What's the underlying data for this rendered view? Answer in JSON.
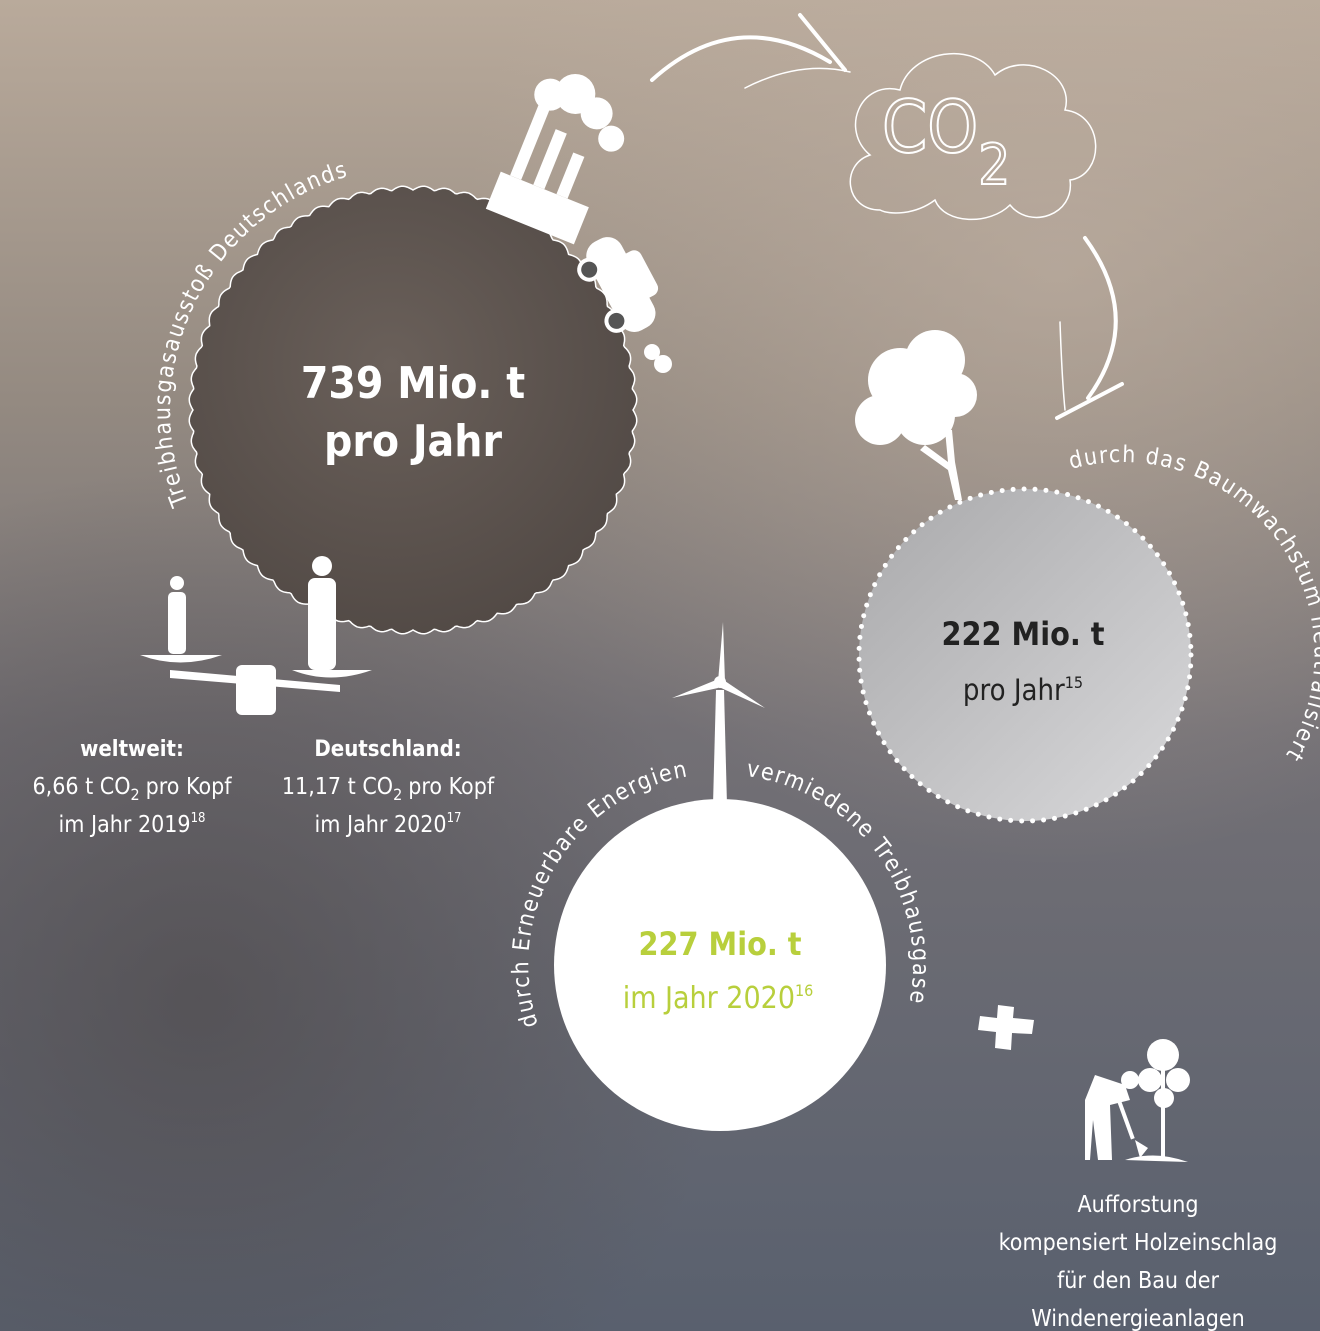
{
  "main": {
    "arc_label": "Treibhausgasausstoß Deutschlands",
    "value": "739 Mio. t",
    "unit": "pro Jahr"
  },
  "per_capita": [
    {
      "region": "weltweit:",
      "amount": "6,66 t CO",
      "subscript": "2",
      "unit": "pro Kopf",
      "year": "im Jahr 2019",
      "footnote": "18"
    },
    {
      "region": "Deutschland:",
      "amount": "11,17 t CO",
      "subscript": "2",
      "unit": "pro Kopf",
      "year": "im Jahr 2020",
      "footnote": "17"
    }
  ],
  "cloud": {
    "text": "CO",
    "subscript": "2"
  },
  "trees": {
    "arc_label": "durch das Baumwachstum neutralisiert",
    "value": "222 Mio. t",
    "unit": "pro Jahr",
    "footnote": "15"
  },
  "renewables": {
    "arc_label_left": "durch Erneuerbare Energien",
    "arc_label_right": "vermiedene Treibhausgase",
    "value": "227 Mio. t",
    "unit": "im Jahr 2020",
    "footnote": "16"
  },
  "afforestation": {
    "lines": [
      "Aufforstung",
      "kompensiert Holzeinschlag",
      "für den Bau der",
      "Windenergieanlagen"
    ]
  }
}
